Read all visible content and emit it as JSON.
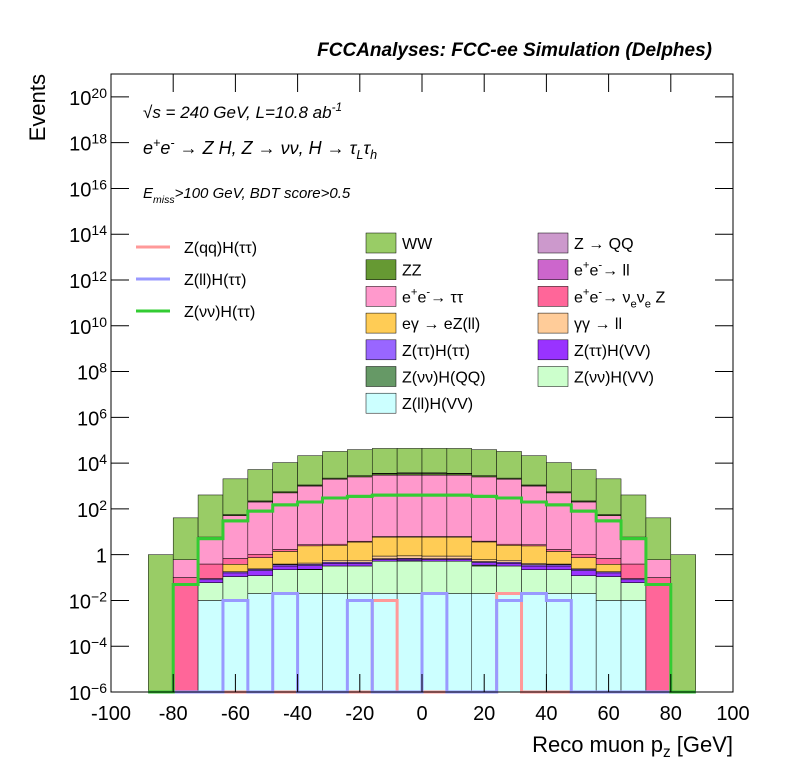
{
  "chart_data": {
    "type": "histogram",
    "title": "FCCAnalyses: FCC-ee Simulation (Delphes)",
    "annotations": [
      "√s = 240 GeV, L=10.8 ab^{-1}",
      "e^{+}e^{-} → Z H, Z → νν, H → τ_{L}τ_{h}",
      "E_{miss}>100 GeV, BDT score>0.5"
    ],
    "xlabel": "Reco muon p_{z} [GeV]",
    "ylabel": "Events",
    "stacked": true,
    "log_y": true,
    "xlim": [
      -100,
      100
    ],
    "ylim": [
      1e-06,
      1e+21
    ],
    "xticks": [
      -100,
      -80,
      -60,
      -40,
      -20,
      0,
      20,
      40,
      60,
      80,
      100
    ],
    "yticks": [
      {
        "value": 1e-06,
        "label": "10^{−6}"
      },
      {
        "value": 0.0001,
        "label": "10^{−4}"
      },
      {
        "value": 0.01,
        "label": "10^{−2}"
      },
      1,
      {
        "value": 100,
        "label": "10^{2}"
      },
      {
        "value": 10000.0,
        "label": "10^{4}"
      },
      {
        "value": 1000000.0,
        "label": "10^{6}"
      },
      {
        "value": 100000000.0,
        "label": "10^{8}"
      },
      {
        "value": 10000000000.0,
        "label": "10^{10}"
      },
      {
        "value": 1000000000000.0,
        "label": "10^{12}"
      },
      {
        "value": 100000000000000.0,
        "label": "10^{14}"
      },
      {
        "value": 1e+16,
        "label": "10^{16}"
      },
      {
        "value": 1e+18,
        "label": "10^{18}"
      },
      {
        "value": 1e+20,
        "label": "10^{20}"
      }
    ],
    "bins": [
      -88,
      -80,
      -72,
      -64,
      -56,
      -48,
      -40,
      -32,
      -24,
      -16,
      -8,
      0,
      8,
      16,
      24,
      32,
      40,
      48,
      56,
      64,
      72,
      80,
      88
    ],
    "series": [
      {
        "name": "WW",
        "color": "#99cc66",
        "values": [
          1,
          40,
          400,
          2000,
          5000,
          10000,
          20000,
          30000,
          36000,
          40000,
          40000,
          40000,
          40000,
          36000,
          30000,
          20000,
          10000,
          5000,
          2000,
          400,
          40,
          1
        ]
      },
      {
        "name": "Z → QQ",
        "color": "#cc99cc",
        "values": [
          0,
          0,
          0,
          0,
          0,
          0,
          0,
          0,
          5,
          150,
          250,
          250,
          150,
          5,
          0,
          0,
          0,
          0,
          0,
          0,
          0,
          0
        ]
      },
      {
        "name": "ZZ",
        "color": "#669933",
        "values": [
          0,
          0,
          0.5,
          5,
          20,
          50,
          100,
          200,
          300,
          400,
          500,
          500,
          400,
          300,
          200,
          100,
          50,
          20,
          5,
          0.5,
          0,
          0
        ]
      },
      {
        "name": "e^{+}e^{-}→ ll",
        "color": "#cc66cc",
        "values": [
          0,
          0,
          0,
          0.5,
          2,
          5,
          8,
          10,
          12,
          15,
          15,
          15,
          15,
          12,
          10,
          8,
          5,
          2,
          0.5,
          0,
          0,
          0
        ]
      },
      {
        "name": "e^{+}e^{-}→ ττ",
        "color": "#ff99cc",
        "values": [
          0,
          0.5,
          5,
          50,
          200,
          500,
          1000,
          2000,
          2500,
          3000,
          3000,
          3000,
          3000,
          2500,
          2000,
          1000,
          500,
          200,
          50,
          5,
          0.5,
          0
        ]
      },
      {
        "name": "e^{+}e^{-}→ ν_{e}ν_{e} Z",
        "color": "#ff6699",
        "values": [
          0,
          0.1,
          0.3,
          0.3,
          0.3,
          0.3,
          0.3,
          0.3,
          0.3,
          0.3,
          0.3,
          0.3,
          0.3,
          0.3,
          0.3,
          0.3,
          0.3,
          0.3,
          0.3,
          0.3,
          0.1,
          0
        ]
      },
      {
        "name": "eγ → eZ(ll)",
        "color": "#ffcc55",
        "values": [
          0,
          0,
          0,
          0.2,
          0.5,
          1,
          2,
          2,
          3,
          5,
          5,
          5,
          5,
          3,
          2,
          2,
          1,
          0.5,
          0.2,
          0,
          0,
          0
        ]
      },
      {
        "name": "γγ → ll",
        "color": "#ffcc99",
        "values": [
          0,
          0,
          0,
          0,
          0.01,
          0.02,
          0.05,
          0.1,
          0.1,
          0.2,
          0.2,
          0.2,
          0.2,
          0.1,
          0.1,
          0.05,
          0.02,
          0.01,
          0,
          0,
          0,
          0
        ]
      },
      {
        "name": "Z(ττ)H(ττ)",
        "color": "#9966ff",
        "values": [
          0,
          0,
          0.01,
          0.02,
          0.03,
          0.05,
          0.05,
          0.05,
          0.05,
          0.05,
          0.05,
          0.05,
          0.05,
          0.05,
          0.05,
          0.05,
          0.05,
          0.03,
          0.02,
          0.01,
          0,
          0
        ]
      },
      {
        "name": "Z(ττ)H(VV)",
        "color": "#9933ff",
        "values": [
          0,
          0,
          0.02,
          0.05,
          0.08,
          0.1,
          0.1,
          0.1,
          0.1,
          0.1,
          0.1,
          0.1,
          0.1,
          0.1,
          0.1,
          0.1,
          0.1,
          0.08,
          0.05,
          0.02,
          0,
          0
        ]
      },
      {
        "name": "Z(νν)H(QQ)",
        "color": "#669966",
        "values": [
          0,
          0,
          0,
          0,
          0,
          0,
          0.01,
          0,
          0,
          0,
          0.02,
          0,
          0,
          0.03,
          0,
          0,
          0,
          0,
          0,
          0,
          0,
          0
        ]
      },
      {
        "name": "Z(νν)H(VV)",
        "color": "#ccffcc",
        "values": [
          0,
          0,
          0.05,
          0.1,
          0.1,
          0.2,
          0.2,
          0.3,
          0.3,
          0.5,
          0.5,
          0.5,
          0.5,
          0.3,
          0.3,
          0.2,
          0.2,
          0.1,
          0.1,
          0.05,
          0,
          0
        ]
      },
      {
        "name": "Z(ll)H(VV)",
        "color": "#ccffff",
        "values": [
          0,
          0,
          0.01,
          0.01,
          0.02,
          0.02,
          0.02,
          0.02,
          0.02,
          0.02,
          0.02,
          0.02,
          0.02,
          0.02,
          0.02,
          0.02,
          0.02,
          0.02,
          0.01,
          0.01,
          0,
          0
        ]
      }
    ],
    "signal_series": [
      {
        "name": "Z(qq)H(ττ)",
        "color": "#ff9999",
        "values": [
          0,
          0,
          0,
          0,
          0,
          0,
          0,
          0,
          0,
          0.01,
          0,
          0,
          0,
          0,
          0.02,
          0,
          0,
          0,
          0,
          0,
          0,
          0
        ]
      },
      {
        "name": "Z(ll)H(ττ)",
        "color": "#9999ff",
        "values": [
          0,
          0,
          0,
          0.01,
          0,
          0.02,
          0,
          0,
          0.01,
          0,
          0,
          0.02,
          0,
          0,
          0.01,
          0.02,
          0.01,
          0,
          0,
          0,
          0,
          0
        ]
      },
      {
        "name": "Z(νν)H(ττ)",
        "color": "#33cc33",
        "values": [
          0,
          0.05,
          5,
          30,
          80,
          150,
          200,
          300,
          350,
          400,
          400,
          400,
          400,
          350,
          300,
          200,
          150,
          80,
          30,
          5,
          0.05,
          0
        ]
      }
    ]
  }
}
